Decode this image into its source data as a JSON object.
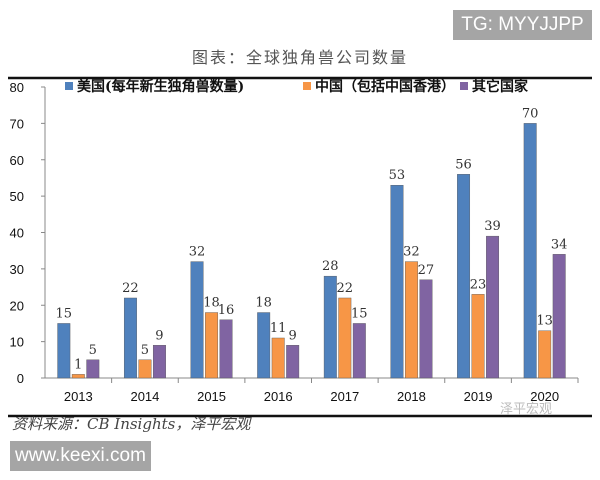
{
  "watermark_top": "TG: MYYJJPP",
  "watermark_bottom": "www.keexi.com",
  "watermark_wechat": "泽平宏观",
  "source": "资料来源：CB Insights，泽平宏观",
  "chart_data": {
    "type": "bar",
    "title": "图表：全球独角兽公司数量",
    "categories": [
      "2013",
      "2014",
      "2015",
      "2016",
      "2017",
      "2018",
      "2019",
      "2020"
    ],
    "series": [
      {
        "name": "美国(每年新生独角兽数量)",
        "color": "#4f81bd",
        "values": [
          15,
          22,
          32,
          18,
          28,
          53,
          56,
          70
        ]
      },
      {
        "name": "中国（包括中国香港）",
        "color": "#f79646",
        "values": [
          1,
          5,
          18,
          11,
          22,
          32,
          23,
          13
        ]
      },
      {
        "name": "其它国家",
        "color": "#8064a2",
        "values": [
          5,
          9,
          16,
          9,
          15,
          27,
          39,
          34
        ]
      }
    ],
    "ylim": [
      0,
      80
    ],
    "yticks": [
      0,
      10,
      20,
      30,
      40,
      50,
      60,
      70,
      80
    ],
    "grid": false,
    "legend": "top",
    "data_labels": true
  }
}
